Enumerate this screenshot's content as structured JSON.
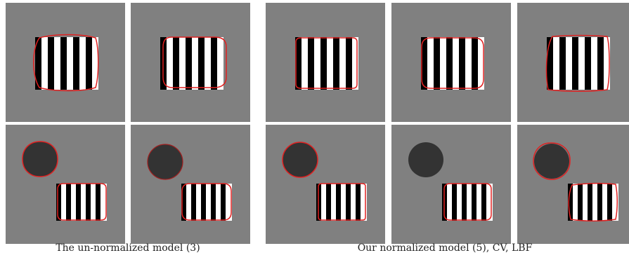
{
  "figure": {
    "captions": {
      "left": "The un-normalized model (3)",
      "right": "Our normalized model (5), CV, LBF"
    },
    "colors": {
      "background": "#808080",
      "stripe_dark": "#000000",
      "stripe_light": "#ffffff",
      "disk": "#333333",
      "contour": "#e02020"
    }
  }
}
